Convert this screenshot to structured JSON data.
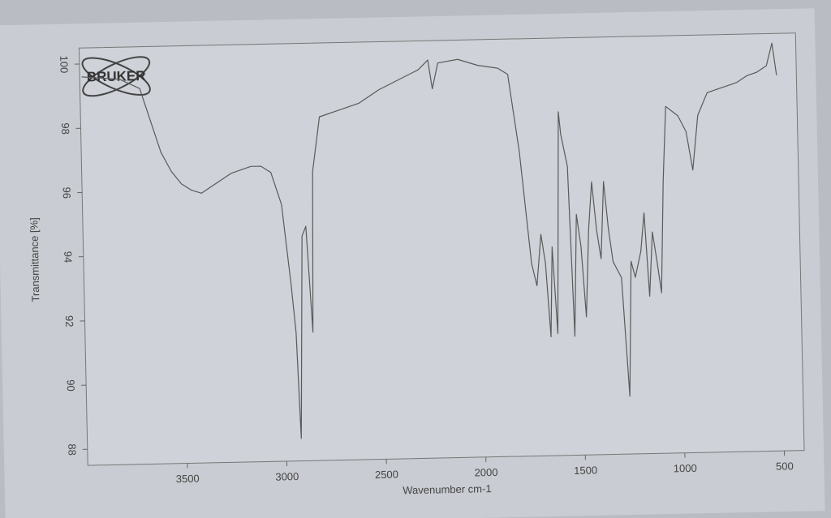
{
  "chart_data": {
    "type": "line",
    "logo": "BRUKER",
    "x_label": "Wavenumber cm-1",
    "y_label": "Transmittance [%]",
    "xlim": [
      4000,
      400
    ],
    "ylim": [
      87.5,
      100.5
    ],
    "xticks": [
      3500,
      3000,
      2500,
      2000,
      1500,
      1000,
      500
    ],
    "yticks": [
      88,
      90,
      92,
      94,
      96,
      98,
      100
    ],
    "color": "#5a5a5a",
    "x": [
      3990,
      3800,
      3700,
      3650,
      3600,
      3550,
      3500,
      3450,
      3400,
      3350,
      3300,
      3250,
      3200,
      3150,
      3100,
      3050,
      3000,
      2960,
      2940,
      2925,
      2900,
      2880,
      2855,
      2840,
      2800,
      2700,
      2600,
      2500,
      2400,
      2300,
      2250,
      2230,
      2200,
      2100,
      2000,
      1900,
      1850,
      1800,
      1750,
      1725,
      1700,
      1680,
      1660,
      1645,
      1625,
      1600,
      1590,
      1560,
      1540,
      1520,
      1500,
      1480,
      1460,
      1440,
      1420,
      1400,
      1380,
      1360,
      1340,
      1300,
      1270,
      1250,
      1230,
      1200,
      1180,
      1160,
      1140,
      1120,
      1100,
      1080,
      1060,
      1000,
      960,
      930,
      900,
      850,
      800,
      750,
      700,
      650,
      600,
      550,
      520,
      500
    ],
    "values": [
      99.6,
      99.5,
      99.2,
      98.2,
      97.2,
      96.6,
      96.2,
      96.0,
      95.9,
      96.1,
      96.3,
      96.5,
      96.6,
      96.7,
      96.7,
      96.5,
      95.5,
      93.0,
      91.5,
      88.2,
      94.5,
      94.8,
      91.5,
      96.5,
      98.2,
      98.4,
      98.6,
      99.0,
      99.3,
      99.6,
      99.9,
      99.0,
      99.8,
      99.9,
      99.7,
      99.6,
      99.4,
      97.0,
      93.5,
      92.8,
      94.4,
      93.5,
      91.2,
      94.0,
      91.3,
      98.2,
      97.5,
      96.5,
      91.2,
      95.0,
      94.0,
      91.8,
      94.5,
      96.0,
      94.5,
      93.6,
      96.0,
      94.5,
      93.5,
      93.0,
      89.3,
      93.5,
      93.0,
      93.8,
      95.0,
      92.4,
      94.4,
      93.5,
      92.5,
      96.0,
      98.3,
      98.0,
      97.5,
      96.3,
      98.0,
      98.7,
      98.8,
      98.9,
      99.0,
      99.2,
      99.3,
      99.5,
      100.2,
      99.2
    ]
  }
}
